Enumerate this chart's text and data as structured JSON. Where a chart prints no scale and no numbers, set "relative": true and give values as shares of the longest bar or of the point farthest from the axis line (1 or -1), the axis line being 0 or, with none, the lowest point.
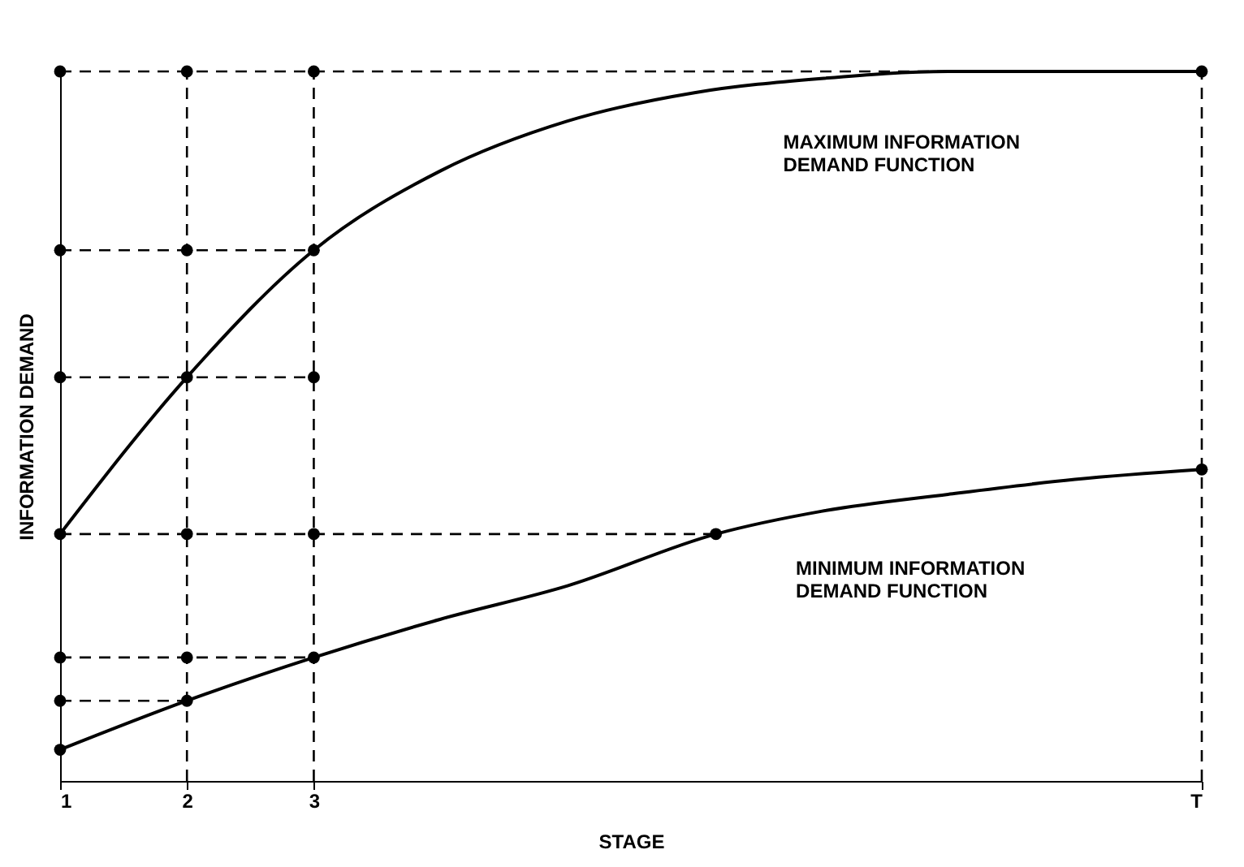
{
  "chart_data": {
    "type": "line",
    "relative": true,
    "xlabel": "STAGE",
    "ylabel": "INFORMATION DEMAND",
    "xlim": [
      1,
      10
    ],
    "xticks": [
      1,
      2,
      3,
      {
        "value": 10,
        "label": "T"
      }
    ],
    "series": [
      {
        "color": "#000000",
        "line_style": "solid",
        "marker": "none",
        "x": [
          1,
          2,
          3,
          4,
          5,
          6,
          7,
          8,
          9,
          10
        ],
        "values": [
          0.348,
          0.569,
          0.748,
          0.86,
          0.93,
          0.97,
          0.99,
          1.0,
          1.0,
          1.0
        ]
      },
      {
        "color": "#000000",
        "line_style": "solid",
        "marker": "none",
        "x": [
          1,
          2,
          3,
          4,
          5,
          6.17,
          7,
          8,
          9,
          10
        ],
        "values": [
          0.044,
          0.113,
          0.174,
          0.228,
          0.275,
          0.348,
          0.38,
          0.404,
          0.425,
          0.439
        ]
      },
      {
        "color": "#000000",
        "line_style": "dashed",
        "marker": "circle",
        "x": [
          1,
          2,
          3,
          10
        ],
        "values": [
          1.0,
          1.0,
          1.0,
          1.0
        ]
      },
      {
        "color": "#000000",
        "line_style": "dashed",
        "marker": "circle",
        "x": [
          1,
          2,
          3
        ],
        "values": [
          0.748,
          0.748,
          0.748
        ]
      },
      {
        "color": "#000000",
        "line_style": "dashed",
        "marker": "circle",
        "x": [
          1,
          2,
          3
        ],
        "values": [
          0.569,
          0.569,
          0.569
        ]
      },
      {
        "color": "#000000",
        "line_style": "dashed",
        "marker": "circle",
        "x": [
          1,
          2,
          3,
          6.17
        ],
        "values": [
          0.348,
          0.348,
          0.348,
          0.348
        ]
      },
      {
        "color": "#000000",
        "line_style": "dashed",
        "marker": "circle",
        "x": [
          1,
          2,
          3
        ],
        "values": [
          0.174,
          0.174,
          0.174
        ]
      },
      {
        "color": "#000000",
        "line_style": "dashed",
        "marker": "circle",
        "x": [
          1,
          2
        ],
        "values": [
          0.113,
          0.113
        ]
      },
      {
        "color": "#000000",
        "line_style": "solid",
        "marker": "circle",
        "x": [
          1
        ],
        "values": [
          0.044
        ]
      },
      {
        "color": "#000000",
        "line_style": "dashed",
        "marker": "none",
        "x": [
          2,
          2
        ],
        "values": [
          0,
          1.0
        ]
      },
      {
        "color": "#000000",
        "line_style": "dashed",
        "marker": "none",
        "x": [
          3,
          3
        ],
        "values": [
          0,
          1.0
        ]
      },
      {
        "color": "#000000",
        "line_style": "dashed",
        "marker": "none",
        "x": [
          10,
          10
        ],
        "values": [
          0,
          1.0
        ]
      },
      {
        "color": "#000000",
        "line_style": "solid",
        "marker": "circle",
        "x": [
          10
        ],
        "values": [
          0.439
        ]
      }
    ],
    "annotations": [
      "MAXIMUM INFORMATION\nDEMAND FUNCTION",
      "MINIMUM INFORMATION\nDEMAND FUNCTION"
    ]
  }
}
